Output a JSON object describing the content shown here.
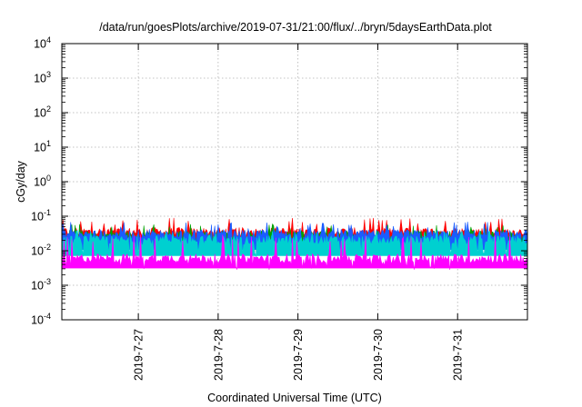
{
  "chart_data": {
    "type": "area",
    "title": "/data/run/goesPlots/archive/2019-07-31/21:00/flux/../bryn/5daysEarthData.plot",
    "xlabel": "Coordinated Universal Time (UTC)",
    "ylabel": "cGy/day",
    "yscale": "log",
    "ylim": [
      0.0001,
      10000
    ],
    "y_ticks": [
      {
        "base": "10",
        "exp": "-4",
        "value": 0.0001
      },
      {
        "base": "10",
        "exp": "-3",
        "value": 0.001
      },
      {
        "base": "10",
        "exp": "-2",
        "value": 0.01
      },
      {
        "base": "10",
        "exp": "-1",
        "value": 0.1
      },
      {
        "base": "10",
        "exp": "0",
        "value": 1
      },
      {
        "base": "10",
        "exp": "1",
        "value": 10
      },
      {
        "base": "10",
        "exp": "2",
        "value": 100
      },
      {
        "base": "10",
        "exp": "3",
        "value": 1000
      },
      {
        "base": "10",
        "exp": "4",
        "value": 10000
      }
    ],
    "xlim": [
      "2019-07-26T01:00",
      "2019-07-31T21:00"
    ],
    "x_ticks": [
      "2019-7-27",
      "2019-7-28",
      "2019-7-29",
      "2019-7-30",
      "2019-7-31"
    ],
    "grid": true,
    "legend": "none",
    "series": [
      {
        "color": "#ff0000",
        "typical": 0.035,
        "low": 0.02,
        "high": 0.09
      },
      {
        "color": "#00a000",
        "typical": 0.028,
        "low": 0.015,
        "high": 0.06
      },
      {
        "color": "#1a5cff",
        "typical": 0.03,
        "low": 0.012,
        "high": 0.07
      },
      {
        "color": "#00d0d0",
        "typical": 0.02,
        "low": 0.008,
        "high": 0.04
      },
      {
        "color": "#ff00ff",
        "typical": 0.006,
        "low": 0.0035,
        "high": 0.03
      }
    ]
  }
}
